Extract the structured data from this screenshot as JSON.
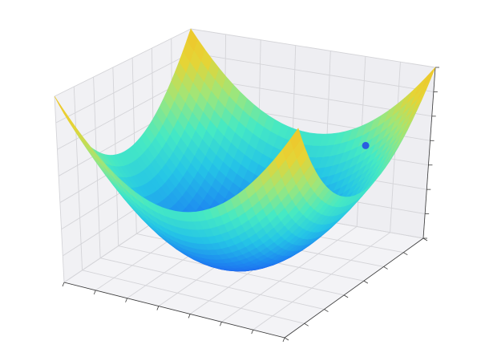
{
  "chart_data": {
    "type": "surface3d",
    "title": "",
    "xlabel": "",
    "ylabel": "",
    "zlabel": "",
    "function": "z = x^2 + y^2",
    "x_range": [
      -1,
      1
    ],
    "y_range": [
      -1,
      1
    ],
    "z_range": [
      0,
      2
    ],
    "grid": true,
    "tick_labels_visible": false,
    "colormap": [
      "#1f5ef0",
      "#1e8cf0",
      "#25c6e6",
      "#45e9c4",
      "#9fe67a",
      "#e5d436",
      "#f0c52a"
    ],
    "marker": {
      "x": 0.55,
      "y": 0.85,
      "z": 1.05,
      "color": "#2a5fe0"
    }
  }
}
